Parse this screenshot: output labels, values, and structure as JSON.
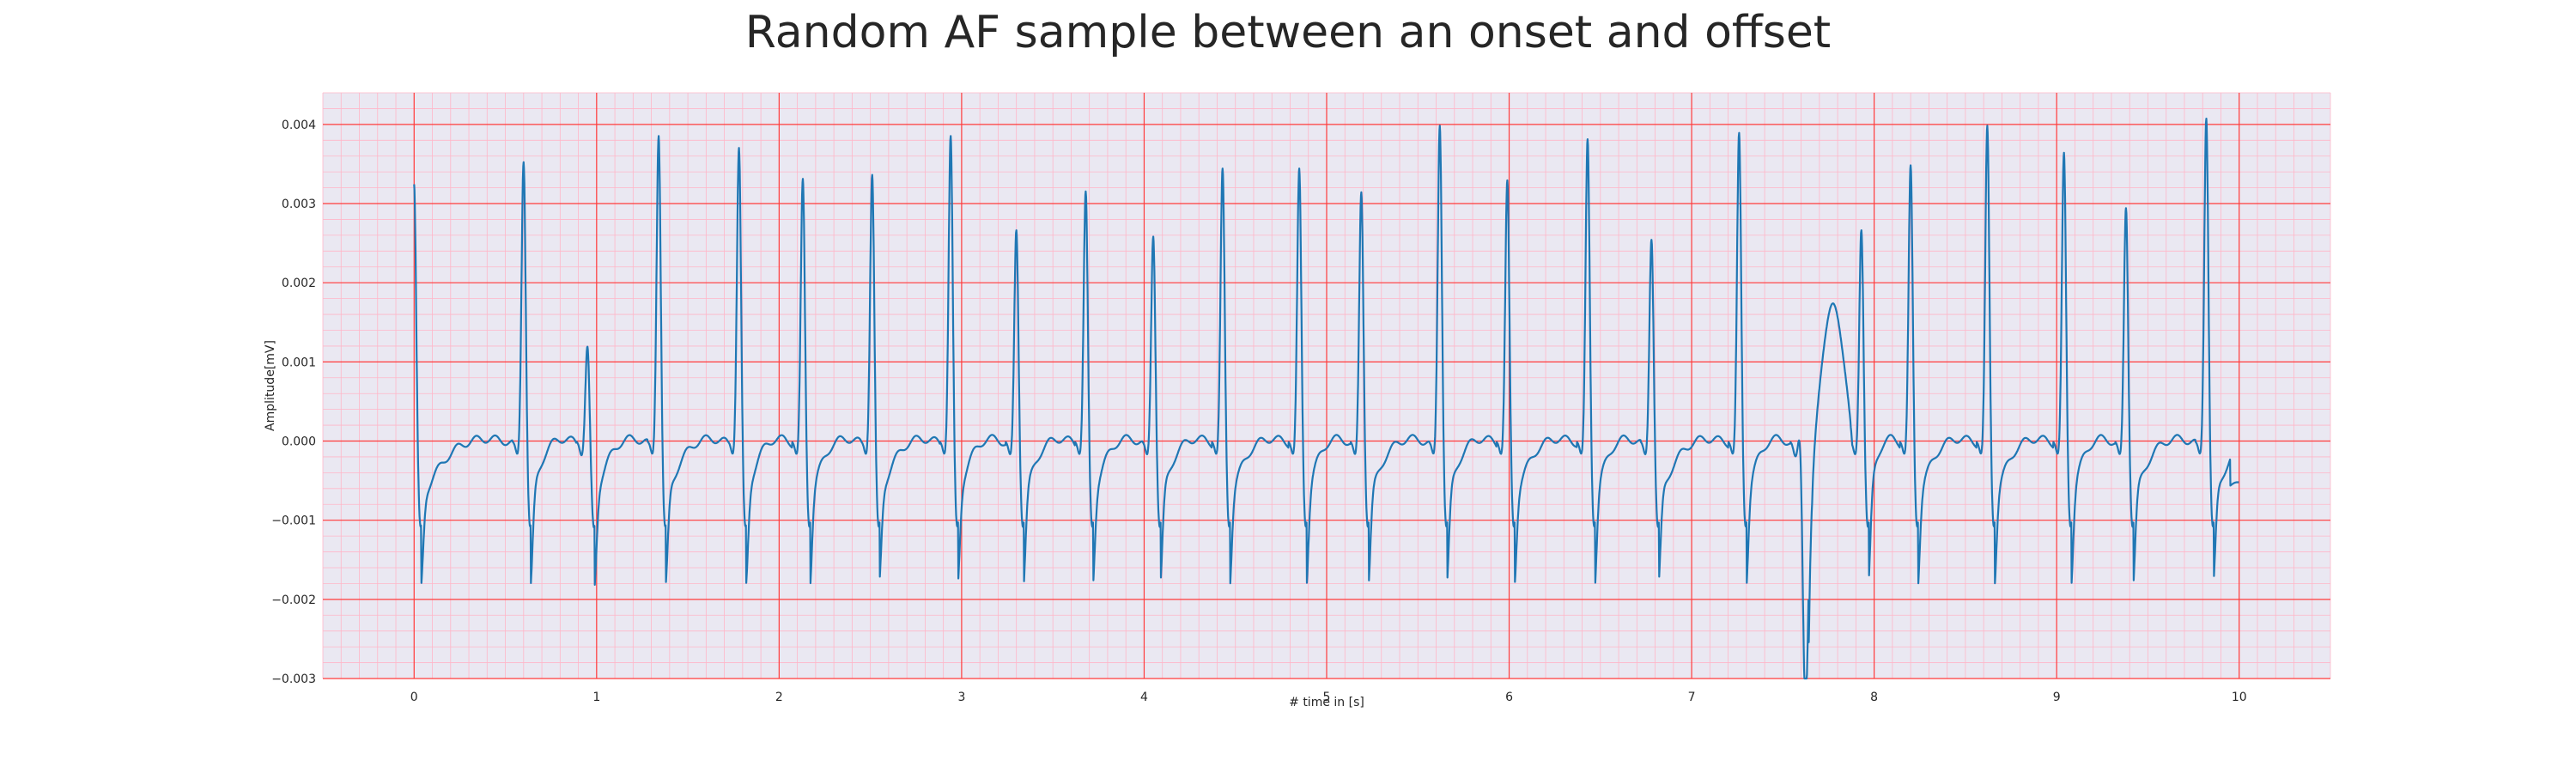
{
  "chart_data": {
    "type": "line",
    "title": "Random AF sample between an onset and offset",
    "xlabel": "# time in [s]",
    "ylabel": "Amplitude[mV]",
    "xlim": [
      -0.5,
      10.5
    ],
    "ylim": [
      -0.003,
      0.0044
    ],
    "xticks": [
      0,
      1,
      2,
      3,
      4,
      5,
      6,
      7,
      8,
      9,
      10
    ],
    "yticks": [
      -0.003,
      -0.002,
      -0.001,
      0.0,
      0.001,
      0.002,
      0.003,
      0.004
    ],
    "ytick_labels": [
      "−0.003",
      "−0.002",
      "−0.001",
      "0.000",
      "0.001",
      "0.002",
      "0.003",
      "0.004"
    ],
    "grid": {
      "major": true,
      "minor": true,
      "major_color": "#ff3b3b",
      "minor_color": "#ffb6c8",
      "background": "#eae8f2"
    },
    "series": [
      {
        "color": "#1f77b4",
        "beats": [
          [
            0.0,
            0.0033
          ],
          [
            0.6,
            0.00358
          ],
          [
            0.95,
            0.00125
          ],
          [
            1.34,
            0.00391
          ],
          [
            1.78,
            0.00376
          ],
          [
            2.13,
            0.00337
          ],
          [
            2.51,
            0.00342
          ],
          [
            2.94,
            0.00391
          ],
          [
            3.3,
            0.00272
          ],
          [
            3.68,
            0.00321
          ],
          [
            4.05,
            0.00264
          ],
          [
            4.43,
            0.0035
          ],
          [
            4.85,
            0.0035
          ],
          [
            5.19,
            0.0032
          ],
          [
            5.62,
            0.00404
          ],
          [
            5.99,
            0.00335
          ],
          [
            6.43,
            0.00387
          ],
          [
            6.78,
            0.0026
          ],
          [
            7.26,
            0.00395
          ],
          [
            7.6,
            0.0005
          ],
          [
            7.93,
            0.00272
          ],
          [
            8.2,
            0.00354
          ],
          [
            8.62,
            0.00404
          ],
          [
            9.04,
            0.0037
          ],
          [
            9.38,
            0.003
          ],
          [
            9.82,
            0.00413
          ]
        ],
        "troughs": [
          [
            7.62,
            -0.00272
          ]
        ],
        "end": [
          10.0,
          -0.00071
        ]
      }
    ]
  }
}
